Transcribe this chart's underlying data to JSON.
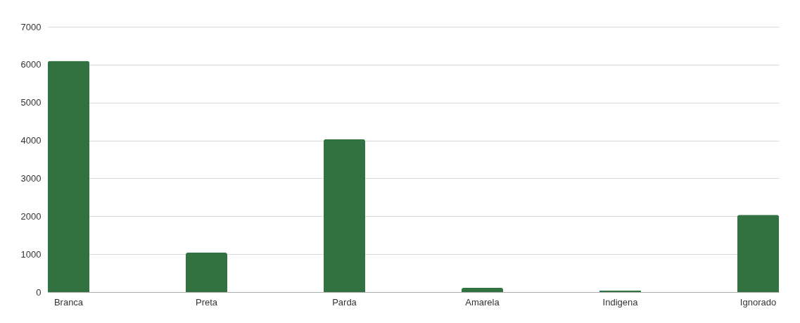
{
  "chart_data": {
    "type": "bar",
    "categories": [
      "Branca",
      "Preta",
      "Parda",
      "Amarela",
      "Indigena",
      "Ignorado"
    ],
    "values": [
      6100,
      1040,
      4030,
      110,
      40,
      2040
    ],
    "color": "#327241",
    "ylim": [
      0,
      7000
    ],
    "yticks": [
      0,
      1000,
      2000,
      3000,
      4000,
      5000,
      6000,
      7000
    ],
    "grid": "y"
  }
}
